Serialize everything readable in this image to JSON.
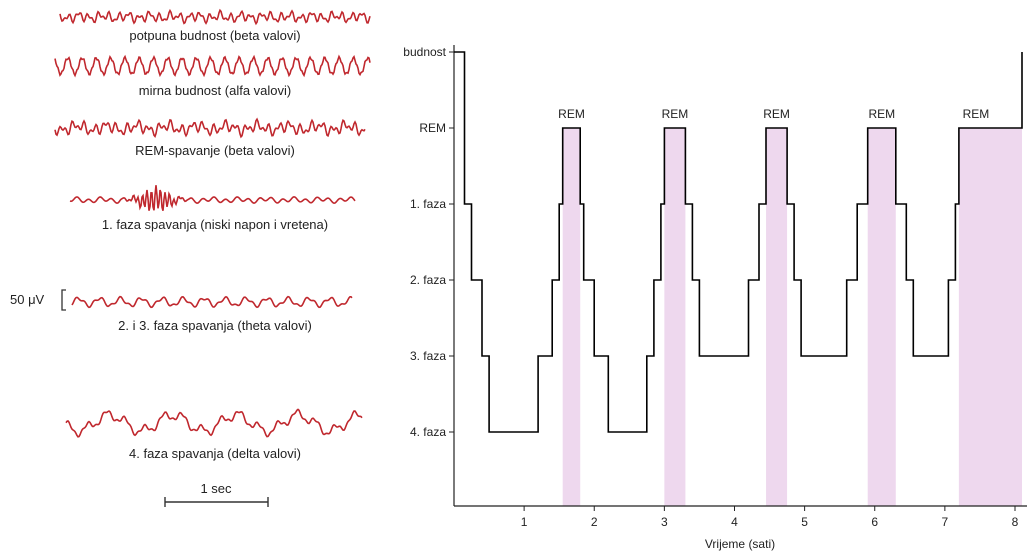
{
  "eeg_panel": {
    "waves": [
      {
        "label": "potpuna budnost (beta valovi)",
        "kind": "beta"
      },
      {
        "label": "mirna budnost (alfa valovi)",
        "kind": "alpha"
      },
      {
        "label": "REM-spavanje (beta valovi)",
        "kind": "rem"
      },
      {
        "label": "1. faza spavanja (niski napon i vretena)",
        "kind": "spindle"
      },
      {
        "label": "2. i 3. faza spavanja (theta valovi)",
        "kind": "theta"
      },
      {
        "label": "4. faza spavanja (delta valovi)",
        "kind": "delta"
      }
    ],
    "amplitude_scale_label": "50 μV",
    "time_scale_label": "1 sec",
    "wave_color": "#c0282e"
  },
  "chart_data": {
    "type": "line",
    "xlabel": "Vrijeme (sati)",
    "ylabel": "",
    "x_ticks": [
      1,
      2,
      3,
      4,
      5,
      6,
      7,
      8
    ],
    "xlim": [
      0,
      8.1
    ],
    "y_categories": [
      "budnost",
      "REM",
      "1. faza",
      "2. faza",
      "3. faza",
      "4. faza"
    ],
    "rem_label": "REM",
    "line_color": "#000000",
    "rem_shading_color": "#eed8ee",
    "hypnogram": [
      {
        "x": 0.0,
        "stage": "budnost"
      },
      {
        "x": 0.15,
        "stage": "1. faza"
      },
      {
        "x": 0.25,
        "stage": "2. faza"
      },
      {
        "x": 0.4,
        "stage": "3. faza"
      },
      {
        "x": 0.5,
        "stage": "4. faza"
      },
      {
        "x": 1.2,
        "stage": "3. faza"
      },
      {
        "x": 1.4,
        "stage": "2. faza"
      },
      {
        "x": 1.5,
        "stage": "1. faza"
      },
      {
        "x": 1.55,
        "stage": "REM"
      },
      {
        "x": 1.8,
        "stage": "1. faza"
      },
      {
        "x": 1.85,
        "stage": "2. faza"
      },
      {
        "x": 2.0,
        "stage": "3. faza"
      },
      {
        "x": 2.2,
        "stage": "4. faza"
      },
      {
        "x": 2.75,
        "stage": "3. faza"
      },
      {
        "x": 2.85,
        "stage": "2. faza"
      },
      {
        "x": 2.95,
        "stage": "1. faza"
      },
      {
        "x": 3.0,
        "stage": "REM"
      },
      {
        "x": 3.3,
        "stage": "1. faza"
      },
      {
        "x": 3.4,
        "stage": "2. faza"
      },
      {
        "x": 3.5,
        "stage": "3. faza"
      },
      {
        "x": 4.2,
        "stage": "2. faza"
      },
      {
        "x": 4.35,
        "stage": "1. faza"
      },
      {
        "x": 4.45,
        "stage": "REM"
      },
      {
        "x": 4.75,
        "stage": "1. faza"
      },
      {
        "x": 4.85,
        "stage": "2. faza"
      },
      {
        "x": 4.95,
        "stage": "3. faza"
      },
      {
        "x": 5.6,
        "stage": "2. faza"
      },
      {
        "x": 5.75,
        "stage": "1. faza"
      },
      {
        "x": 5.9,
        "stage": "REM"
      },
      {
        "x": 6.3,
        "stage": "1. faza"
      },
      {
        "x": 6.45,
        "stage": "2. faza"
      },
      {
        "x": 6.55,
        "stage": "3. faza"
      },
      {
        "x": 7.05,
        "stage": "2. faza"
      },
      {
        "x": 7.15,
        "stage": "1. faza"
      },
      {
        "x": 7.2,
        "stage": "REM"
      },
      {
        "x": 8.1,
        "stage": "budnost"
      }
    ],
    "rem_periods": [
      [
        1.55,
        1.8
      ],
      [
        3.0,
        3.3
      ],
      [
        4.45,
        4.75
      ],
      [
        5.9,
        6.3
      ],
      [
        7.2,
        8.1
      ]
    ]
  }
}
